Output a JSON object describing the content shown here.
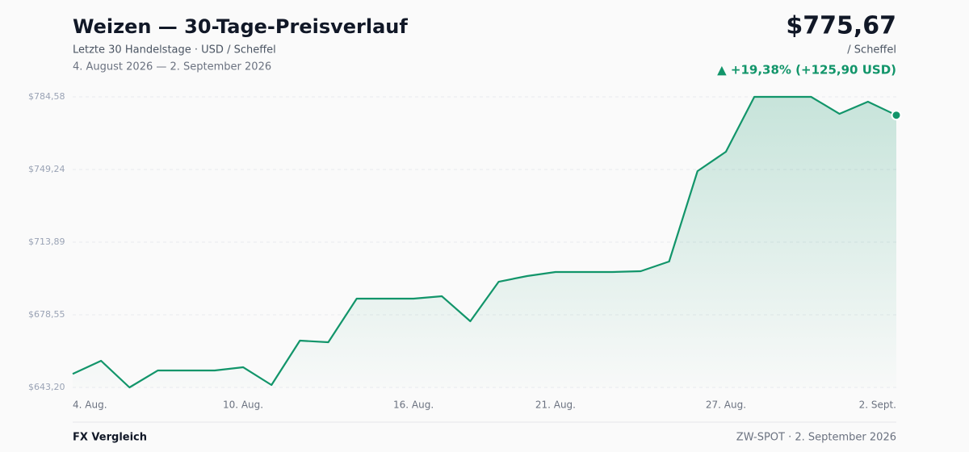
{
  "chart_data": {
    "type": "line",
    "title": "Weizen — 30-Tage-Preisverlauf",
    "subtitle": "Letzte 30 Handelstage · USD / Scheffel",
    "date_range": "4. August 2026 — 2. September 2026",
    "price_label": "$775,67",
    "unit_label": "/ Scheffel",
    "change_label": "▲ +19,38% (+125,90 USD)",
    "categories": [
      "4. Aug.",
      null,
      null,
      null,
      null,
      null,
      "10. Aug.",
      null,
      null,
      null,
      null,
      null,
      "16. Aug.",
      null,
      null,
      null,
      null,
      "21. Aug.",
      null,
      null,
      null,
      null,
      null,
      "27. Aug.",
      null,
      null,
      null,
      null,
      null,
      "2. Sept."
    ],
    "series": [
      {
        "name": "Weizen",
        "color": "#12956a",
        "values": [
          649.77,
          656.16,
          643.2,
          651.45,
          651.45,
          651.45,
          653.02,
          644.38,
          665.98,
          665.19,
          686.39,
          686.39,
          686.39,
          687.57,
          675.4,
          694.64,
          697.39,
          699.36,
          699.36,
          699.36,
          699.75,
          704.46,
          748.45,
          757.87,
          784.58,
          784.58,
          784.58,
          776.33,
          782.22,
          775.67
        ]
      }
    ],
    "ylim": [
      643.2,
      784.58
    ],
    "yticks": [
      {
        "value": 643.2,
        "label": "$643,20"
      },
      {
        "value": 678.55,
        "label": "$678,55"
      },
      {
        "value": 713.89,
        "label": "$713,89"
      },
      {
        "value": 749.24,
        "label": "$749,24"
      },
      {
        "value": 784.58,
        "label": "$784,58"
      }
    ],
    "grid": true
  },
  "footer": {
    "left": "FX Vergleich",
    "right": "ZW-SPOT · 2. September 2026"
  }
}
